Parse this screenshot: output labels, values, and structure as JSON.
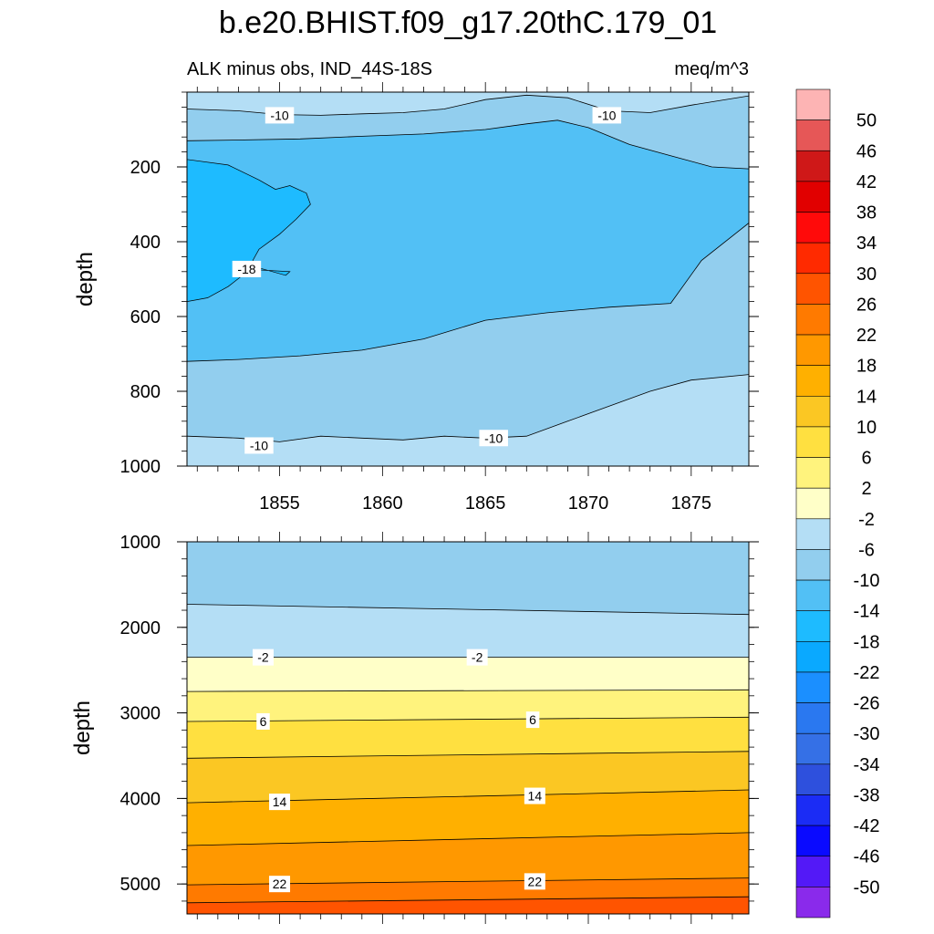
{
  "title": "b.e20.BHIST.f09_g17.20thC.179_01",
  "chart_data": [
    {
      "type": "contour",
      "panel": "upper",
      "subtitle_left": "ALK minus obs, IND_44S-18S",
      "subtitle_right": "meq/m^3",
      "ylabel": "depth",
      "xlabel": "",
      "x_range": [
        1850.5,
        1877.8
      ],
      "y_range": [
        0,
        1000
      ],
      "y_reversed": true,
      "x_ticks": [
        "1855",
        "1860",
        "1865",
        "1870",
        "1875"
      ],
      "y_ticks": [
        "200",
        "400",
        "600",
        "800",
        "1000"
      ],
      "contour_labels": [
        {
          "text": "-10",
          "x": 1854.0,
          "y": 945
        },
        {
          "text": "-10",
          "x": 1865.4,
          "y": 925
        },
        {
          "text": "-10",
          "x": 1855.0,
          "y": 62
        },
        {
          "text": "-10",
          "x": 1870.9,
          "y": 62
        },
        {
          "text": "-18",
          "x": 1853.4,
          "y": 473
        }
      ],
      "contours": [
        {
          "level": -10,
          "x": [
            1850.5,
            1853,
            1855,
            1857,
            1859,
            1861,
            1863,
            1865,
            1867,
            1869,
            1871,
            1873,
            1875,
            1877.8
          ],
          "y": [
            45,
            50,
            60,
            62,
            58,
            55,
            45,
            20,
            8,
            15,
            50,
            55,
            35,
            10
          ]
        },
        {
          "level": -14,
          "x": [
            1850.5,
            1853,
            1856,
            1859,
            1862,
            1865,
            1867,
            1868.5,
            1870,
            1872,
            1874,
            1876,
            1877.8
          ],
          "y": [
            130,
            128,
            125,
            118,
            112,
            100,
            85,
            75,
            95,
            140,
            170,
            200,
            205
          ]
        },
        {
          "level": -10,
          "x": [
            1850.5,
            1853,
            1855,
            1857,
            1859,
            1861,
            1863,
            1865,
            1867,
            1869,
            1871,
            1873,
            1875,
            1877.8
          ],
          "y": [
            920,
            925,
            935,
            920,
            925,
            930,
            920,
            925,
            920,
            880,
            840,
            800,
            770,
            755
          ]
        },
        {
          "level": -14,
          "x": [
            1850.5,
            1853,
            1856,
            1859,
            1862,
            1865,
            1868,
            1871,
            1874,
            1875.5,
            1877.8
          ],
          "y": [
            720,
            715,
            705,
            690,
            660,
            610,
            590,
            575,
            565,
            450,
            350
          ]
        }
      ]
    },
    {
      "type": "contour",
      "panel": "lower",
      "ylabel": "depth",
      "xlabel": "",
      "x_range": [
        1850.5,
        1877.8
      ],
      "y_range": [
        1000,
        5350
      ],
      "y_reversed": true,
      "y_ticks": [
        "1000",
        "2000",
        "3000",
        "4000",
        "5000"
      ],
      "contour_labels": [
        {
          "text": "-2",
          "x": 1854.2,
          "y": 2350
        },
        {
          "text": "-2",
          "x": 1864.6,
          "y": 2350
        },
        {
          "text": "6",
          "x": 1854.2,
          "y": 3100
        },
        {
          "text": "6",
          "x": 1867.3,
          "y": 3080
        },
        {
          "text": "14",
          "x": 1855.0,
          "y": 4040
        },
        {
          "text": "14",
          "x": 1867.4,
          "y": 3970
        },
        {
          "text": "22",
          "x": 1855.0,
          "y": 5000
        },
        {
          "text": "22",
          "x": 1867.4,
          "y": 4970
        }
      ],
      "contours": [
        {
          "level": -6,
          "x": [
            1850.5,
            1877.8
          ],
          "y": [
            1730,
            1850
          ]
        },
        {
          "level": -2,
          "x": [
            1850.5,
            1877.8
          ],
          "y": [
            2350,
            2350
          ]
        },
        {
          "level": 2,
          "x": [
            1850.5,
            1877.8
          ],
          "y": [
            2750,
            2730
          ]
        },
        {
          "level": 6,
          "x": [
            1850.5,
            1877.8
          ],
          "y": [
            3100,
            3050
          ]
        },
        {
          "level": 10,
          "x": [
            1850.5,
            1877.8
          ],
          "y": [
            3530,
            3450
          ]
        },
        {
          "level": 14,
          "x": [
            1850.5,
            1877.8
          ],
          "y": [
            4050,
            3900
          ]
        },
        {
          "level": 18,
          "x": [
            1850.5,
            1877.8
          ],
          "y": [
            4550,
            4400
          ]
        },
        {
          "level": 22,
          "x": [
            1850.5,
            1877.8
          ],
          "y": [
            5010,
            4930
          ]
        },
        {
          "level": 26,
          "x": [
            1850.5,
            1877.8
          ],
          "y": [
            5220,
            5150
          ]
        }
      ]
    }
  ],
  "colorbar": {
    "labels": [
      "50",
      "46",
      "42",
      "38",
      "34",
      "30",
      "26",
      "22",
      "18",
      "14",
      "10",
      "6",
      "2",
      "-2",
      "-6",
      "-10",
      "-14",
      "-18",
      "-22",
      "-26",
      "-30",
      "-34",
      "-38",
      "-42",
      "-46",
      "-50"
    ],
    "colors": [
      "#FDB4B4",
      "#E65757",
      "#CF1818",
      "#E10000",
      "#FF0A0A",
      "#FF2A00",
      "#FF5400",
      "#FF7A00",
      "#FF9800",
      "#FFB000",
      "#FBC723",
      "#FFE040",
      "#FFF37D",
      "#FFFFC8",
      "#B4DEF5",
      "#92CEEE",
      "#52C0F5",
      "#1EBBFF",
      "#0AA9FF",
      "#1B8FFF",
      "#2A78F0",
      "#3570E6",
      "#2E50DD",
      "#1B2CF5",
      "#0A0AFF",
      "#5319F7",
      "#8A2AEB"
    ]
  }
}
